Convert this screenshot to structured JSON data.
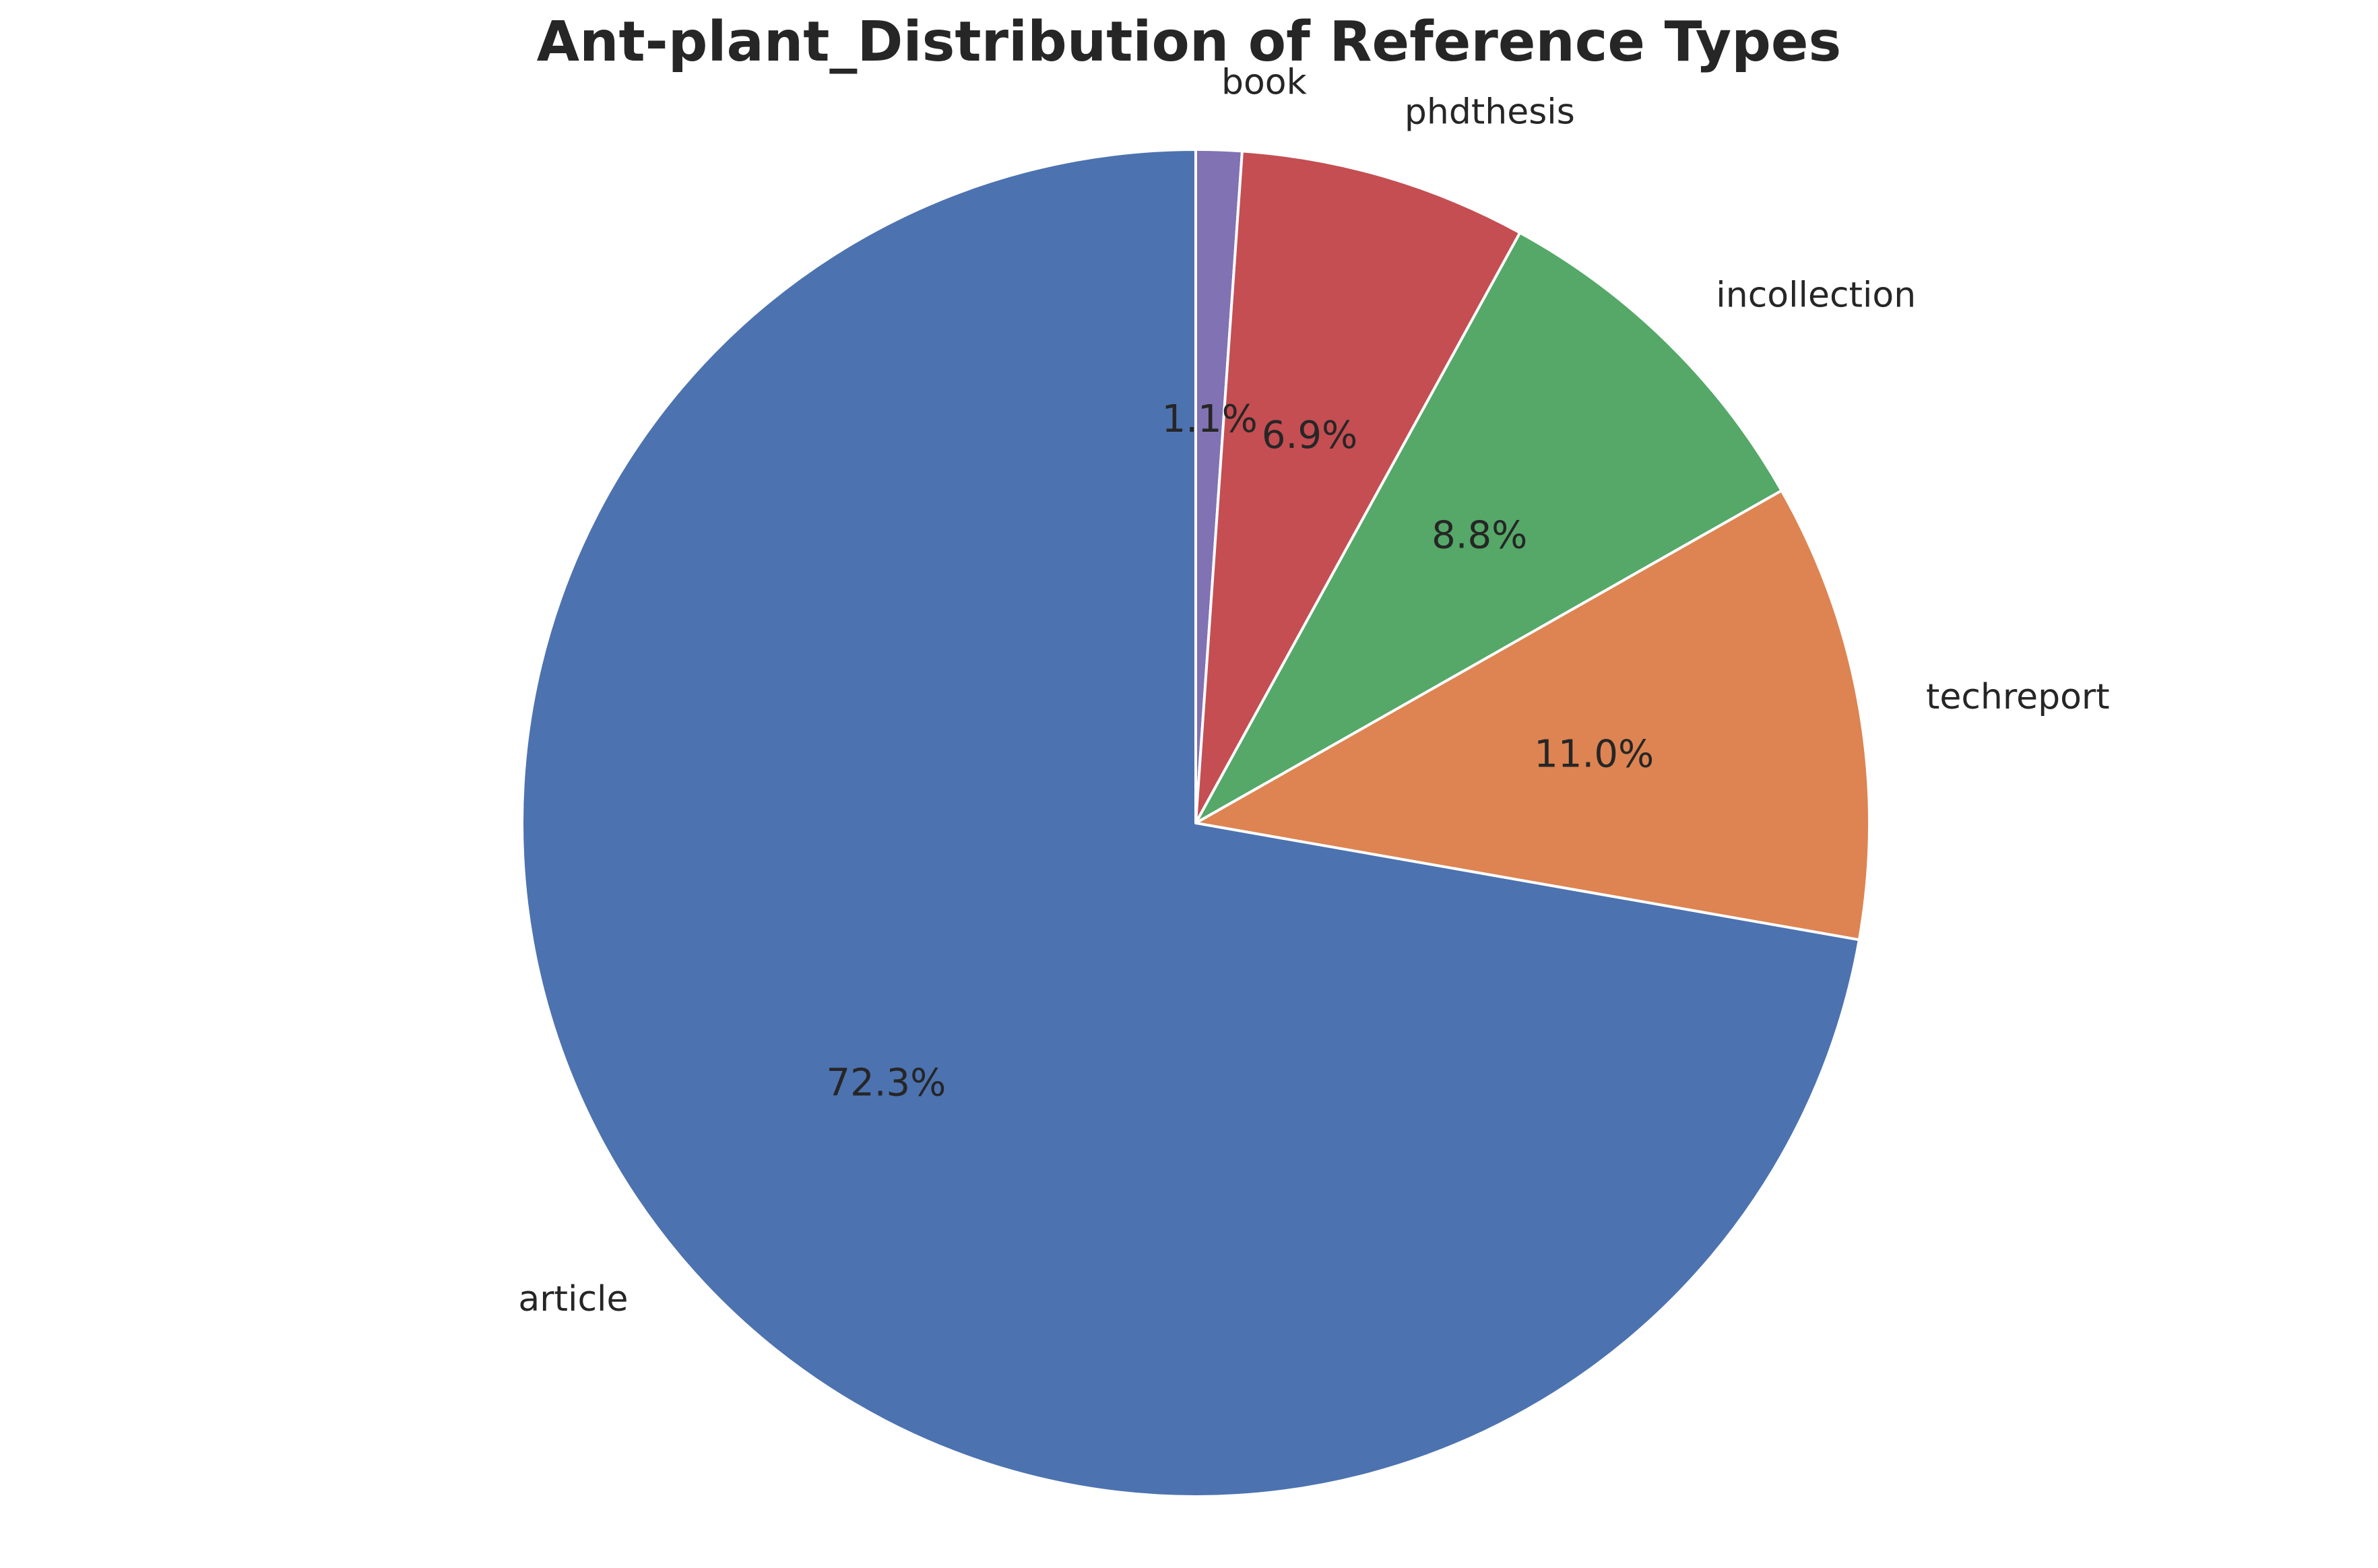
{
  "chart_data": {
    "type": "pie",
    "title": "Ant-plant_Distribution of Reference Types",
    "start_angle_deg": 90,
    "direction": "clockwise",
    "slices": [
      {
        "label": "book",
        "value": 1.1,
        "pct_label": "1.1%",
        "color": "#8172b3"
      },
      {
        "label": "phdthesis",
        "value": 6.9,
        "pct_label": "6.9%",
        "color": "#c44e52"
      },
      {
        "label": "incollection",
        "value": 8.8,
        "pct_label": "8.8%",
        "color": "#55a868"
      },
      {
        "label": "techreport",
        "value": 11.0,
        "pct_label": "11.0%",
        "color": "#dd8452"
      },
      {
        "label": "article",
        "value": 72.3,
        "pct_label": "72.3%",
        "color": "#4c72b0"
      }
    ]
  }
}
